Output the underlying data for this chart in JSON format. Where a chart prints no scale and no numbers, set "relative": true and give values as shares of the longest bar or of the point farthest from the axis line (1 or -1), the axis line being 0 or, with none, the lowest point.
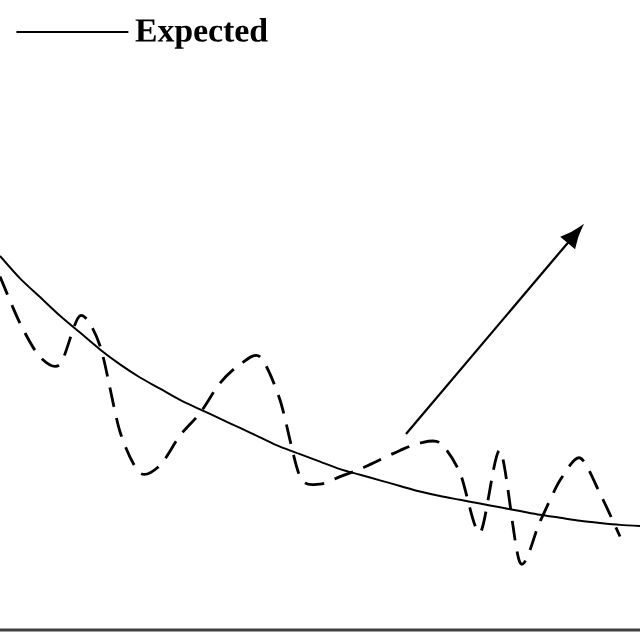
{
  "chart_data": {
    "type": "line",
    "relative": true,
    "legend": "top left",
    "categories": [
      null,
      null,
      null,
      null,
      null,
      null,
      null,
      null,
      null,
      null,
      null,
      null,
      null,
      null,
      null,
      null,
      null,
      null,
      null,
      null,
      null,
      null,
      null,
      null,
      null,
      null,
      null,
      null,
      null,
      null,
      null,
      null,
      null
    ],
    "series": [
      {
        "name": "Expected",
        "color": "#000000",
        "line_style": "solid",
        "values": [
          1.0,
          0.94,
          0.89,
          0.84,
          0.795,
          0.75,
          0.71,
          0.675,
          0.645,
          0.615,
          0.59,
          0.565,
          0.54,
          0.515,
          0.49,
          0.47,
          0.45,
          0.43,
          0.415,
          0.4,
          0.385,
          0.37,
          0.358,
          0.348,
          0.338,
          0.328,
          0.318,
          0.308,
          0.3,
          0.292,
          0.286,
          0.281,
          0.278
        ]
      },
      {
        "color": "#000000",
        "line_style": "dashed",
        "values": [
          0.945,
          0.82,
          0.73,
          0.71,
          0.84,
          0.76,
          0.53,
          0.42,
          0.44,
          0.52,
          0.58,
          0.66,
          0.71,
          0.73,
          0.615,
          0.41,
          0.39,
          0.41,
          0.43,
          0.455,
          0.48,
          0.5,
          0.5,
          0.42,
          0.26,
          0.48,
          0.18,
          0.29,
          0.4,
          0.46,
          0.365,
          0.25,
          null
        ]
      }
    ]
  }
}
